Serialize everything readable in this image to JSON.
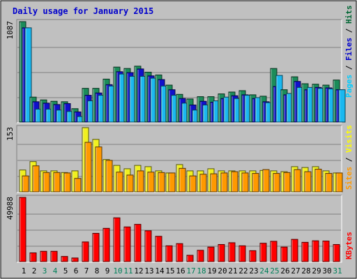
{
  "chart_data": {
    "type": "bar",
    "title": "Daily usage for January 2015",
    "categories": [
      "1",
      "2",
      "3",
      "4",
      "5",
      "6",
      "7",
      "8",
      "9",
      "10",
      "11",
      "12",
      "13",
      "14",
      "15",
      "16",
      "17",
      "18",
      "19",
      "20",
      "21",
      "22",
      "23",
      "24",
      "25",
      "26",
      "27",
      "28",
      "29",
      "30",
      "31"
    ],
    "weekend_days": [
      "3",
      "4",
      "10",
      "11",
      "17",
      "18",
      "24",
      "25",
      "31"
    ],
    "panels": [
      {
        "id": "top",
        "ymax_label": "1087",
        "ylim": [
          0,
          1087
        ],
        "legend": [
          {
            "text": "Pages",
            "color": "#00ccff"
          },
          {
            "text": " / ",
            "color": "#000000"
          },
          {
            "text": "Files",
            "color": "#0000cc"
          },
          {
            "text": " / ",
            "color": "#000000"
          },
          {
            "text": "Hits",
            "color": "#006633"
          }
        ],
        "series": [
          {
            "name": "Hits",
            "color": "#1c8c5a",
            "values": [
              1087,
              270,
              240,
              225,
              220,
              145,
              365,
              365,
              465,
              595,
              580,
              605,
              540,
              510,
              400,
              300,
              250,
              275,
              275,
              305,
              325,
              340,
              295,
              280,
              580,
              350,
              490,
              415,
              410,
              400,
              455
            ]
          },
          {
            "name": "Files",
            "color": "#1010cc",
            "values": [
              1020,
              220,
              205,
              190,
              200,
              110,
              290,
              315,
              405,
              545,
              535,
              575,
              500,
              460,
              350,
              255,
              185,
              225,
              215,
              255,
              285,
              295,
              255,
              220,
              385,
              295,
              440,
              350,
              375,
              370,
              350
            ]
          },
          {
            "name": "Pages",
            "color": "#1ab8f0",
            "values": [
              1020,
              140,
              140,
              130,
              115,
              60,
              230,
              290,
              390,
              520,
              495,
              495,
              475,
              390,
              290,
              205,
              130,
              185,
              230,
              270,
              255,
              290,
              265,
              210,
              505,
              310,
              375,
              375,
              365,
              360,
              350
            ]
          }
        ]
      },
      {
        "id": "middle",
        "ymax_label": "153",
        "ylim": [
          0,
          153
        ],
        "legend": [
          {
            "text": "Sites",
            "color": "#ff9900"
          },
          {
            "text": " / ",
            "color": "#000000"
          },
          {
            "text": "Visits",
            "color": "#ffff00"
          }
        ],
        "series": [
          {
            "name": "Visits",
            "color": "#f0f020",
            "values": [
              52,
              72,
              50,
              50,
              46,
              50,
              153,
              125,
              77,
              63,
              55,
              63,
              60,
              50,
              45,
              65,
              50,
              50,
              55,
              50,
              50,
              50,
              50,
              51,
              50,
              48,
              60,
              58,
              60,
              50,
              45
            ]
          },
          {
            "name": "Sites",
            "color": "#ff9900",
            "values": [
              38,
              62,
              46,
              46,
              45,
              32,
              118,
              107,
              75,
              47,
              40,
              50,
              47,
              46,
              45,
              56,
              38,
              42,
              43,
              45,
              48,
              45,
              44,
              53,
              44,
              46,
              53,
              48,
              54,
              44,
              45
            ]
          }
        ]
      },
      {
        "id": "bottom",
        "ymax_label": "49988",
        "ylim": [
          0,
          49988
        ],
        "legend": [
          {
            "text": "KBytes",
            "color": "#ff0000"
          }
        ],
        "series": [
          {
            "name": "KBytes",
            "color": "#ff0000",
            "values": [
              49988,
              6800,
              8000,
              8000,
              4000,
              2800,
              15300,
              22000,
              25900,
              34100,
              27000,
              29000,
              24000,
              19700,
              12300,
              14000,
              4900,
              8800,
              11300,
              13300,
              14700,
              12300,
              8500,
              14300,
              15800,
              11300,
              17300,
              15000,
              16200,
              16000,
              13300
            ]
          }
        ]
      }
    ]
  }
}
